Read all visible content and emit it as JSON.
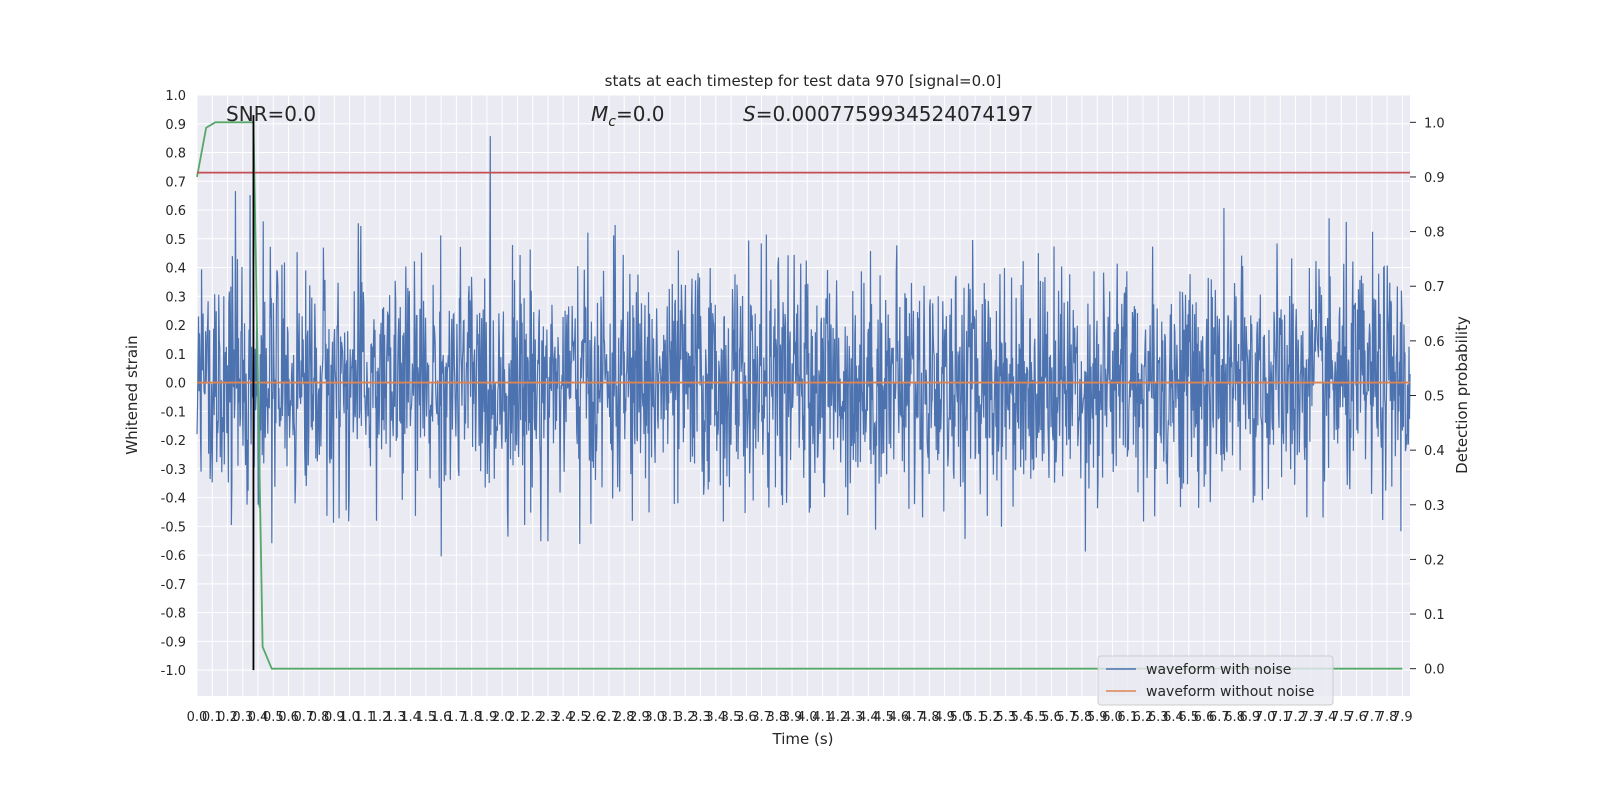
{
  "chart_data": {
    "type": "line",
    "title": "stats at each timestep for test data 970 [signal=0.0]",
    "xlabel": "Time (s)",
    "ylabel_left": "Whitened strain",
    "ylabel_right": "Detection probability",
    "xlim": [
      0.0,
      7.95
    ],
    "ylim_left": [
      -1.09,
      1.0
    ],
    "ylim_right": [
      -0.05,
      1.05
    ],
    "grid": true,
    "x_ticks": [
      "0.0",
      "0.1",
      "0.2",
      "0.3",
      "0.4",
      "0.5",
      "0.6",
      "0.7",
      "0.8",
      "0.9",
      "1.0",
      "1.1",
      "1.2",
      "1.3",
      "1.4",
      "1.5",
      "1.6",
      "1.7",
      "1.8",
      "1.9",
      "2.0",
      "2.1",
      "2.2",
      "2.3",
      "2.4",
      "2.5",
      "2.6",
      "2.7",
      "2.8",
      "2.9",
      "3.0",
      "3.1",
      "3.2",
      "3.3",
      "3.4",
      "3.5",
      "3.6",
      "3.7",
      "3.8",
      "3.9",
      "4.0",
      "4.1",
      "4.2",
      "4.3",
      "4.4",
      "4.5",
      "4.6",
      "4.7",
      "4.8",
      "4.9",
      "5.0",
      "5.1",
      "5.2",
      "5.3",
      "5.4",
      "5.5",
      "5.6",
      "5.7",
      "5.8",
      "5.9",
      "6.0",
      "6.1",
      "6.2",
      "6.3",
      "6.4",
      "6.5",
      "6.6",
      "6.7",
      "6.8",
      "6.9",
      "7.0",
      "7.1",
      "7.2",
      "7.3",
      "7.4",
      "7.5",
      "7.6",
      "7.7",
      "7.8",
      "7.9"
    ],
    "y_ticks_left": [
      "1.0",
      "0.9",
      "0.8",
      "0.7",
      "0.6",
      "0.5",
      "0.4",
      "0.3",
      "0.2",
      "0.1",
      "0.0",
      "-0.1",
      "-0.2",
      "-0.3",
      "-0.4",
      "-0.5",
      "-0.6",
      "-0.7",
      "-0.8",
      "-0.9",
      "-1.0"
    ],
    "y_ticks_right": [
      "1.0",
      "0.9",
      "0.8",
      "0.7",
      "0.6",
      "0.5",
      "0.4",
      "0.3",
      "0.2",
      "0.1",
      "0.0"
    ],
    "annotations": {
      "snr": "SNR=0.0",
      "mc": "=0.0",
      "s": "=0.0007759934524074197"
    },
    "legend": {
      "placement": "lower-right",
      "items": [
        "waveform with noise",
        "waveform without noise"
      ]
    },
    "series": [
      {
        "name": "waveform with noise",
        "axis": "left",
        "color": "#4c72b0",
        "kind": "noise",
        "sigma": 0.2
      },
      {
        "name": "waveform without noise",
        "axis": "left",
        "color": "#dd8452",
        "x": [
          0.0,
          7.95
        ],
        "y": [
          0.0,
          0.0
        ]
      },
      {
        "axis": "right",
        "color": "#55a868",
        "x": [
          0.0,
          0.06,
          0.12,
          0.37,
          0.43,
          0.49,
          7.9
        ],
        "y": [
          0.9,
          0.99,
          1.0,
          1.0,
          0.04,
          0.0,
          0.0
        ]
      },
      {
        "axis": "left",
        "color": "#c44e52",
        "x": [
          0.0,
          7.95
        ],
        "y": [
          0.73,
          0.73
        ]
      },
      {
        "axis": "left",
        "color": "#000000",
        "x": [
          0.37,
          0.37
        ],
        "y": [
          -1.0,
          0.93
        ]
      }
    ]
  }
}
